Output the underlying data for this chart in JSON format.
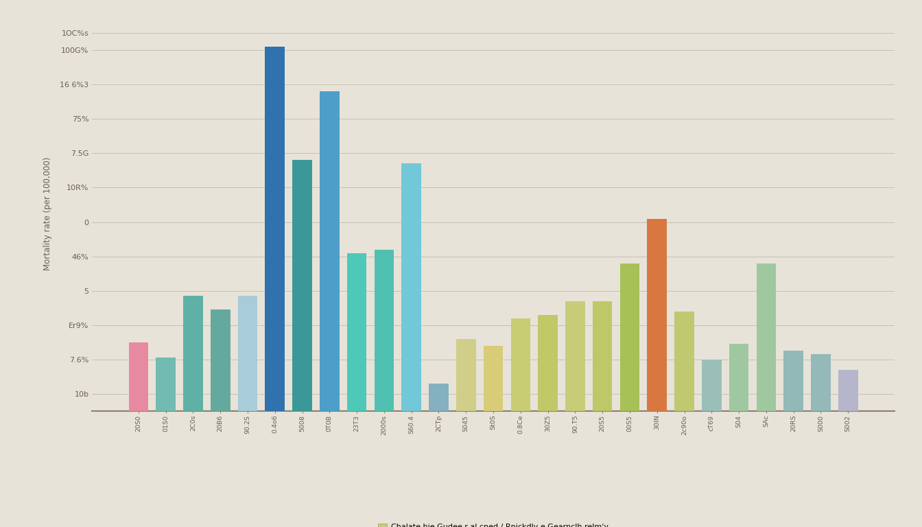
{
  "background_color": "#e8e3d8",
  "grid_color": "#c5c0b5",
  "ylabel": "Mortality rate (per 100,000)",
  "ylim": [
    0,
    1150
  ],
  "ytick_count": 12,
  "ytick_positions": [
    50,
    150,
    250,
    350,
    450,
    550,
    650,
    750,
    850,
    950,
    1050,
    1100
  ],
  "ytick_labels": [
    "10b",
    "7.6%",
    "Er9%",
    "5",
    "46%",
    "0",
    "10R%",
    "7.5G",
    "75%",
    "16 6%3",
    "100G%",
    "1OC%s"
  ],
  "bars": [
    {
      "label": "20S0",
      "value": 200,
      "color": "#e889a2"
    },
    {
      "label": "01S0",
      "value": 155,
      "color": "#72bbb2"
    },
    {
      "label": "2C0s",
      "value": 335,
      "color": "#5fb0a5"
    },
    {
      "label": "20B6",
      "value": 295,
      "color": "#65a89e"
    },
    {
      "label": "90.2S",
      "value": 335,
      "color": "#a8ccd8"
    },
    {
      "label": "0.4o6",
      "value": 1060,
      "color": "#2f72ad"
    },
    {
      "label": "5008",
      "value": 730,
      "color": "#3b9898"
    },
    {
      "label": "0T0B",
      "value": 930,
      "color": "#4d9ec8"
    },
    {
      "label": "23T3",
      "value": 460,
      "color": "#4ec8b8"
    },
    {
      "label": "2000s",
      "value": 470,
      "color": "#50c0b0"
    },
    {
      "label": "S60.4",
      "value": 720,
      "color": "#72c8d8"
    },
    {
      "label": "2CTp",
      "value": 80,
      "color": "#85b0c0"
    },
    {
      "label": "S045",
      "value": 210,
      "color": "#d0ce88"
    },
    {
      "label": "St0S",
      "value": 190,
      "color": "#d8cc78"
    },
    {
      "label": "0.8Ce",
      "value": 270,
      "color": "#c8cc74"
    },
    {
      "label": "30Z5",
      "value": 280,
      "color": "#c0c868"
    },
    {
      "label": "90.T5",
      "value": 320,
      "color": "#c8cc78"
    },
    {
      "label": "20S5",
      "value": 320,
      "color": "#bec868"
    },
    {
      "label": "00S5",
      "value": 430,
      "color": "#a8c058"
    },
    {
      "label": "30IN",
      "value": 560,
      "color": "#d87840"
    },
    {
      "label": "2c90o",
      "value": 290,
      "color": "#c0c870"
    },
    {
      "label": "cT69",
      "value": 150,
      "color": "#9abfb8"
    },
    {
      "label": "S04",
      "value": 195,
      "color": "#a0c8a0"
    },
    {
      "label": "SAc",
      "value": 430,
      "color": "#a0c8a0"
    },
    {
      "label": "20RS",
      "value": 175,
      "color": "#92b8b8"
    },
    {
      "label": "S000",
      "value": 165,
      "color": "#95b8b8"
    },
    {
      "label": "S002",
      "value": 120,
      "color": "#b5b5cc"
    }
  ],
  "legend_text": "Chalate hie Gudee r al cned / Rnickdly e Gearnclh relm'y",
  "legend_color": "#c8cc78"
}
